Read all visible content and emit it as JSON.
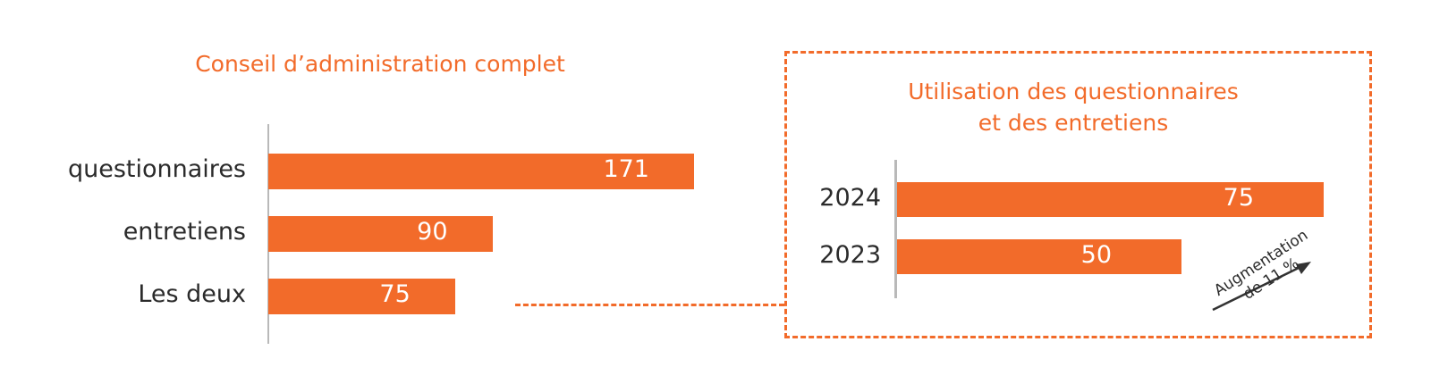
{
  "chart_data": [
    {
      "type": "bar",
      "orientation": "horizontal",
      "title": "Conseil d’administration complet",
      "categories": [
        "questionnaires",
        "entretiens",
        "Les deux"
      ],
      "values": [
        171,
        90,
        75
      ],
      "color": "#f26b2a",
      "xlim": [
        0,
        171
      ]
    },
    {
      "type": "bar",
      "orientation": "horizontal",
      "title_lines": [
        "Utilisation des questionnaires",
        "et des entretiens"
      ],
      "categories": [
        "2024",
        "2023"
      ],
      "values": [
        75,
        50
      ],
      "color": "#f26b2a",
      "xlim": [
        0,
        75
      ],
      "annotation_lines": [
        "Augmentation",
        "de 11 %"
      ]
    }
  ],
  "colors": {
    "accent": "#f26b2a",
    "axis": "#b9b9b9",
    "arrow": "#333333"
  }
}
